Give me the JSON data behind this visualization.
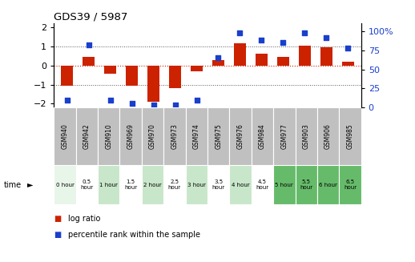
{
  "title": "GDS39 / 5987",
  "samples": [
    "GSM940",
    "GSM942",
    "GSM910",
    "GSM969",
    "GSM970",
    "GSM973",
    "GSM974",
    "GSM975",
    "GSM976",
    "GSM984",
    "GSM977",
    "GSM903",
    "GSM906",
    "GSM985"
  ],
  "time_labels": [
    "0 hour",
    "0.5\nhour",
    "1 hour",
    "1.5\nhour",
    "2 hour",
    "2.5\nhour",
    "3 hour",
    "3.5\nhour",
    "4 hour",
    "4.5\nhour",
    "5 hour",
    "5.5\nhour",
    "6 hour",
    "6.5\nhour"
  ],
  "time_bg_colors": [
    "#e8f5e9",
    "#ffffff",
    "#c8e6c9",
    "#ffffff",
    "#c8e6c9",
    "#ffffff",
    "#c8e6c9",
    "#ffffff",
    "#c8e6c9",
    "#ffffff",
    "#66bb6a",
    "#66bb6a",
    "#66bb6a",
    "#66bb6a"
  ],
  "log_ratio": [
    -1.05,
    0.45,
    -0.45,
    -1.05,
    -1.9,
    -1.2,
    -0.3,
    0.3,
    1.15,
    0.6,
    0.45,
    1.05,
    0.95,
    0.2
  ],
  "percentile": [
    10,
    82,
    10,
    5,
    3,
    3,
    10,
    65,
    98,
    88,
    85,
    98,
    92,
    78
  ],
  "ylim_left": [
    -2.2,
    2.2
  ],
  "ylim_right": [
    0,
    110
  ],
  "yticks_left": [
    -2,
    -1,
    0,
    1,
    2
  ],
  "yticks_right": [
    0,
    25,
    50,
    75,
    100
  ],
  "bar_color": "#cc2200",
  "dot_color": "#1a3fcc",
  "bar_width": 0.55,
  "zero_line_color": "#cc2200",
  "grid_color": "#555555",
  "bg_color": "#ffffff",
  "sample_header_bg": "#c0c0c0",
  "legend_bar_label": "log ratio",
  "legend_dot_label": "percentile rank within the sample"
}
